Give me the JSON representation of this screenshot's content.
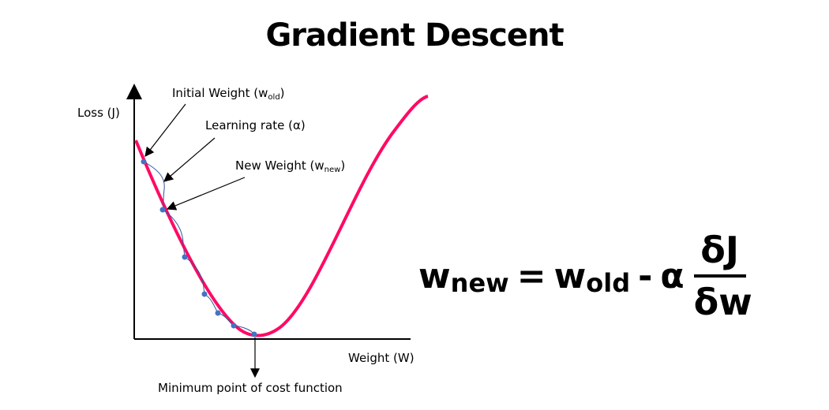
{
  "title": "Gradient Descent",
  "axes": {
    "y_label": "Loss (J)",
    "x_label": "Weight (W)"
  },
  "annotations": {
    "initial_weight": "Initial Weight (w",
    "initial_weight_sub": "old",
    "learning_rate": "Learning rate (α)",
    "new_weight": "New Weight (w",
    "new_weight_sub": "new",
    "close_paren": ")",
    "minimum": "Minimum point of cost function"
  },
  "formula": {
    "lhs": "w",
    "lhs_sub": "new",
    "equals": "=",
    "w": "w",
    "w_sub": "old",
    "minus": "-",
    "alpha": "α",
    "numerator": "δJ",
    "denominator": "δw"
  },
  "colors": {
    "curve": "#ff0a64",
    "steps": "#4472c4",
    "step_path": "#2f5597"
  }
}
